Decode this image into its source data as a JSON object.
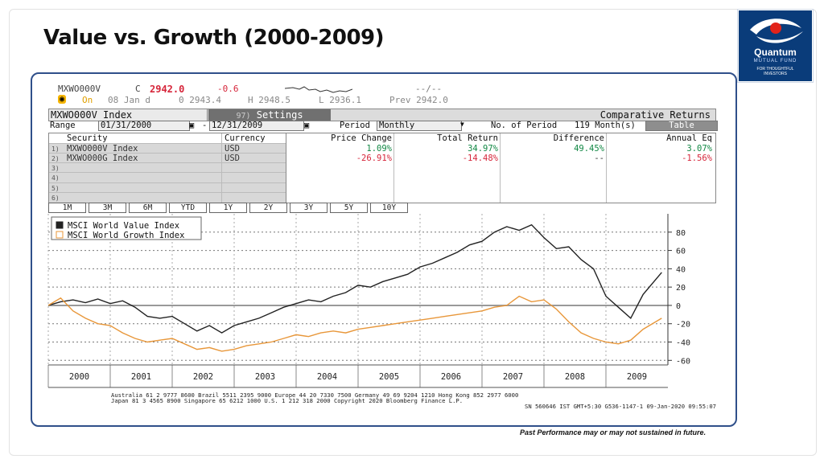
{
  "slide": {
    "title": "Value vs. Growth (2000-2009)",
    "disclaimer": "Past Performance may or may not sustained in future."
  },
  "logo": {
    "name": "Quantum",
    "sub": "MUTUAL FUND",
    "tag1": "FOR THOUGHTFUL",
    "tag2": "INVESTORS",
    "colors": {
      "bg": "#0a3c7a",
      "accent": "#e2231a"
    }
  },
  "terminal": {
    "ticker": "MXWO000V",
    "field_c": "C",
    "last": "2942.0",
    "change": "-0.6",
    "blank_quote": "--/--",
    "on_label": "On",
    "date": "08 Jan d",
    "open": "0 2943.4",
    "high": "H 2948.5",
    "low": "L 2936.1",
    "prev": "Prev 2942.0",
    "index_label": "MXWO000V Index",
    "settings_num": "97)",
    "settings_label": "Settings",
    "comparative_label": "Comparative Returns",
    "range_label": "Range",
    "range_start": "01/31/2000",
    "range_end": "12/31/2009",
    "period_label": "Period",
    "period_value": "Monthly",
    "num_period_label": "No. of Period",
    "num_period_value": "119 Month(s)",
    "table_btn": "Table",
    "headers": [
      "Security",
      "Currency",
      "Price Change",
      "Total Return",
      "Difference",
      "Annual Eq"
    ],
    "rows": [
      {
        "n": "1)",
        "security": "MXWO000V Index",
        "currency": "USD",
        "price_change": "1.09%",
        "total_return": "34.97%",
        "difference": "49.45%",
        "annual_eq": "3.07%"
      },
      {
        "n": "2)",
        "security": "MXWO000G Index",
        "currency": "USD",
        "price_change": "-26.91%",
        "total_return": "-14.48%",
        "difference": "--",
        "annual_eq": "-1.56%"
      }
    ],
    "empty_rows": [
      "3)",
      "4)",
      "5)",
      "6)"
    ],
    "periods": [
      "1M",
      "3M",
      "6M",
      "YTD",
      "1Y",
      "2Y",
      "3Y",
      "5Y",
      "10Y"
    ],
    "footer1": "Australia 61 2 9777 8600 Brazil 5511 2395 9000 Europe 44 20 7330 7500 Germany 49 69 9204 1210 Hong Kong 852 2977 6000",
    "footer2": "Japan 81 3 4565 8900       Singapore 65 6212 1000       U.S. 1 212 318 2000          Copyright 2020 Bloomberg Finance L.P.",
    "footer3": "SN 560646 IST  GMT+5:30 G536-1147-1 09-Jan-2020 09:55:07"
  },
  "chart_data": {
    "type": "line",
    "x_ticks": [
      "2000",
      "2001",
      "2002",
      "2003",
      "2004",
      "2005",
      "2006",
      "2007",
      "2008",
      "2009"
    ],
    "y_ticks": [
      80,
      60,
      40,
      20,
      0,
      -20,
      -40,
      -60
    ],
    "ylim": [
      -65,
      100
    ],
    "xlim": [
      2000,
      2010
    ],
    "grid": true,
    "legend_position": "top-left",
    "series": [
      {
        "name": "MSCI World Value Index",
        "color": "#222222",
        "x": [
          2000.0,
          2000.2,
          2000.4,
          2000.6,
          2000.8,
          2001.0,
          2001.2,
          2001.4,
          2001.6,
          2001.8,
          2002.0,
          2002.2,
          2002.4,
          2002.6,
          2002.8,
          2003.0,
          2003.2,
          2003.4,
          2003.6,
          2003.8,
          2004.0,
          2004.2,
          2004.4,
          2004.6,
          2004.8,
          2005.0,
          2005.2,
          2005.4,
          2005.6,
          2005.8,
          2006.0,
          2006.2,
          2006.4,
          2006.6,
          2006.8,
          2007.0,
          2007.2,
          2007.4,
          2007.6,
          2007.8,
          2008.0,
          2008.2,
          2008.4,
          2008.6,
          2008.8,
          2009.0,
          2009.2,
          2009.4,
          2009.6,
          2009.9
        ],
        "y": [
          0,
          4,
          6,
          3,
          7,
          2,
          5,
          -2,
          -12,
          -14,
          -12,
          -20,
          -28,
          -22,
          -30,
          -22,
          -18,
          -14,
          -8,
          -2,
          2,
          6,
          4,
          10,
          14,
          22,
          20,
          26,
          30,
          34,
          42,
          46,
          52,
          58,
          66,
          70,
          80,
          86,
          82,
          88,
          74,
          62,
          64,
          50,
          40,
          10,
          -2,
          -14,
          12,
          36
        ]
      },
      {
        "name": "MSCI World Growth Index",
        "color": "#e8973a",
        "x": [
          2000.0,
          2000.2,
          2000.4,
          2000.6,
          2000.8,
          2001.0,
          2001.2,
          2001.4,
          2001.6,
          2001.8,
          2002.0,
          2002.2,
          2002.4,
          2002.6,
          2002.8,
          2003.0,
          2003.2,
          2003.4,
          2003.6,
          2003.8,
          2004.0,
          2004.2,
          2004.4,
          2004.6,
          2004.8,
          2005.0,
          2005.2,
          2005.4,
          2005.6,
          2005.8,
          2006.0,
          2006.2,
          2006.4,
          2006.6,
          2006.8,
          2007.0,
          2007.2,
          2007.4,
          2007.6,
          2007.8,
          2008.0,
          2008.2,
          2008.4,
          2008.6,
          2008.8,
          2009.0,
          2009.2,
          2009.4,
          2009.6,
          2009.9
        ],
        "y": [
          0,
          8,
          -6,
          -14,
          -20,
          -22,
          -30,
          -36,
          -40,
          -38,
          -36,
          -42,
          -48,
          -46,
          -50,
          -48,
          -44,
          -42,
          -40,
          -36,
          -32,
          -34,
          -30,
          -28,
          -30,
          -26,
          -24,
          -22,
          -20,
          -18,
          -16,
          -14,
          -12,
          -10,
          -8,
          -6,
          -2,
          0,
          10,
          4,
          6,
          -4,
          -18,
          -30,
          -36,
          -40,
          -42,
          -38,
          -26,
          -14
        ]
      }
    ]
  }
}
